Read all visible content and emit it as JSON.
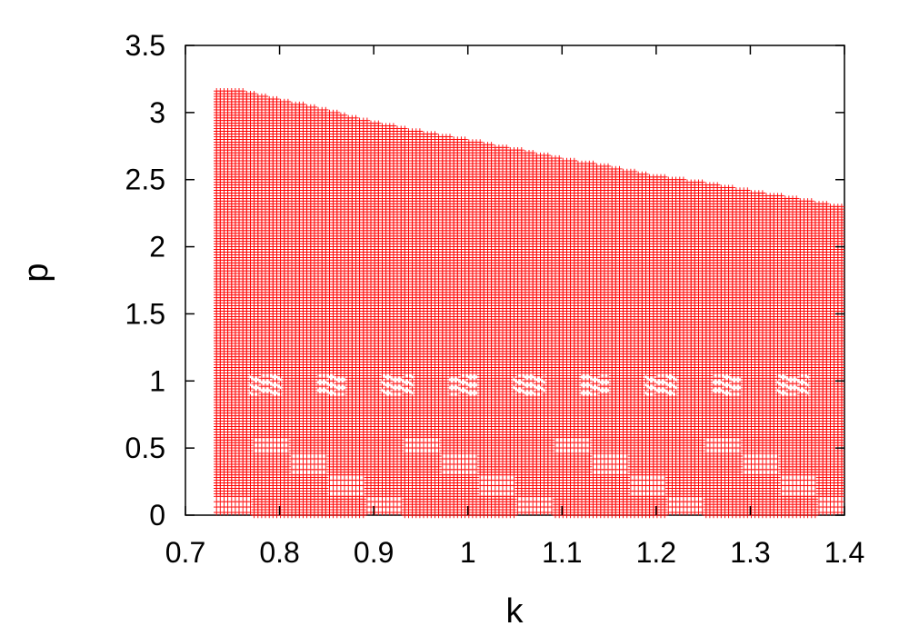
{
  "chart_data": {
    "type": "scatter",
    "title": "",
    "xlabel": "k",
    "ylabel": "p",
    "xlim": [
      0.7,
      1.4
    ],
    "ylim": [
      0,
      3.5
    ],
    "xticks": [
      "0.7",
      "0.8",
      "0.9",
      "1",
      "1.1",
      "1.2",
      "1.3",
      "1.4"
    ],
    "yticks": [
      "0",
      "0.5",
      "1",
      "1.5",
      "2",
      "2.5",
      "3",
      "3.5"
    ],
    "grid": false,
    "marker": "plus",
    "marker_color": "#ff0000",
    "series": [
      {
        "k_range": [
          0.733,
          1.4
        ],
        "p_min": 0,
        "k_step": 0.004,
        "p_step": 0.02,
        "upper_boundary": [
          {
            "k": 0.733,
            "p": 3.17
          },
          {
            "k": 0.75,
            "p": 3.18
          },
          {
            "k": 0.8,
            "p": 3.1
          },
          {
            "k": 0.85,
            "p": 3.02
          },
          {
            "k": 0.9,
            "p": 2.93
          },
          {
            "k": 0.95,
            "p": 2.86
          },
          {
            "k": 1.0,
            "p": 2.8
          },
          {
            "k": 1.05,
            "p": 2.73
          },
          {
            "k": 1.1,
            "p": 2.66
          },
          {
            "k": 1.15,
            "p": 2.6
          },
          {
            "k": 1.2,
            "p": 2.53
          },
          {
            "k": 1.25,
            "p": 2.48
          },
          {
            "k": 1.3,
            "p": 2.42
          },
          {
            "k": 1.35,
            "p": 2.36
          },
          {
            "k": 1.4,
            "p": 2.3
          }
        ]
      }
    ]
  }
}
